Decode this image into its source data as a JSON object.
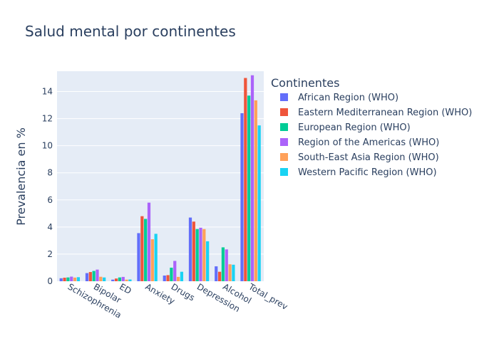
{
  "chart_data": {
    "type": "bar",
    "title": "Salud mental por continentes",
    "xlabel": "",
    "ylabel": "Prevalencia en %",
    "ylim": [
      0,
      15.5
    ],
    "yticks": [
      0,
      2,
      4,
      6,
      8,
      10,
      12,
      14
    ],
    "grid": true,
    "legend_title": "Continentes",
    "legend_position": "right",
    "categories": [
      "Schizophrenia",
      "Bipolar",
      "ED",
      "Anxiety",
      "Drugs",
      "Depression",
      "Alcohol",
      "Total_prev"
    ],
    "series": [
      {
        "name": "African Region (WHO)",
        "color": "#636efa",
        "values": [
          0.22,
          0.6,
          0.12,
          3.55,
          0.42,
          4.7,
          1.1,
          12.4
        ]
      },
      {
        "name": "Eastern Mediterranean Region (WHO)",
        "color": "#EF553B",
        "values": [
          0.26,
          0.68,
          0.2,
          4.8,
          0.45,
          4.4,
          0.7,
          15.0
        ]
      },
      {
        "name": "European Region (WHO)",
        "color": "#00cc96",
        "values": [
          0.28,
          0.76,
          0.28,
          4.6,
          1.0,
          3.85,
          2.5,
          13.7
        ]
      },
      {
        "name": "Region of the Americas (WHO)",
        "color": "#ab63fa",
        "values": [
          0.34,
          0.86,
          0.32,
          5.8,
          1.5,
          3.95,
          2.35,
          15.2
        ]
      },
      {
        "name": "South-East Asia Region (WHO)",
        "color": "#FFA15A",
        "values": [
          0.27,
          0.33,
          0.12,
          3.1,
          0.32,
          3.85,
          1.25,
          13.35
        ]
      },
      {
        "name": "Western Pacific Region (WHO)",
        "color": "#19d3f3",
        "values": [
          0.3,
          0.28,
          0.13,
          3.5,
          0.7,
          2.95,
          1.22,
          11.5
        ]
      }
    ],
    "plot_background": "#e5ecf6",
    "grid_color": "#ffffff"
  }
}
